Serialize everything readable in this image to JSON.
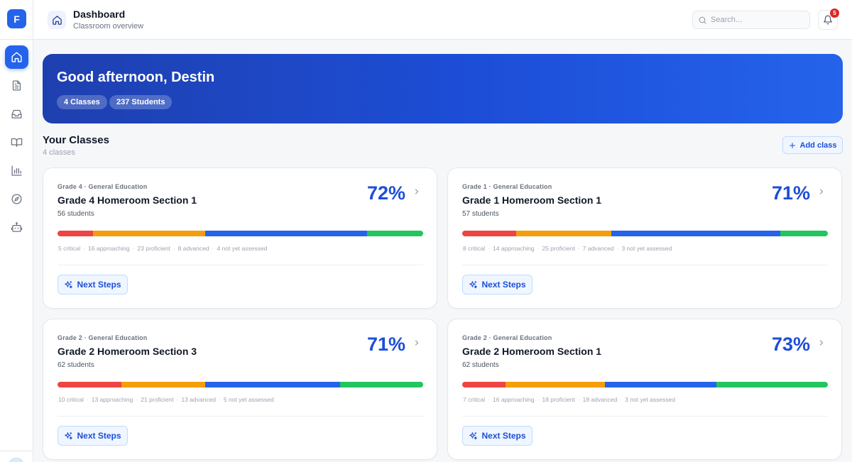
{
  "app": {
    "logo_letter": "F"
  },
  "sidebar": {
    "items": [
      {
        "name": "home",
        "icon": "home-icon",
        "active": true
      },
      {
        "name": "documents",
        "icon": "document-icon",
        "active": false
      },
      {
        "name": "inbox",
        "icon": "inbox-icon",
        "active": false
      },
      {
        "name": "library",
        "icon": "book-icon",
        "active": false
      },
      {
        "name": "reports",
        "icon": "chart-icon",
        "active": false
      },
      {
        "name": "explore",
        "icon": "compass-icon",
        "active": false
      },
      {
        "name": "assistant",
        "icon": "robot-icon",
        "active": false
      }
    ]
  },
  "header": {
    "title": "Dashboard",
    "subtitle": "Classroom overview",
    "search_placeholder": "Search...",
    "notification_count": "5"
  },
  "banner": {
    "greeting": "Good afternoon, Destin",
    "classes_pill": "4 Classes",
    "students_pill": "237 Students"
  },
  "section": {
    "title": "Your Classes",
    "subtitle": "4 classes",
    "add_label": "Add class"
  },
  "colors": {
    "accent": "#2563eb",
    "critical": "#ef4444",
    "approaching": "#f59e0b",
    "proficient": "#2563eb",
    "advanced": "#22c55e"
  },
  "cards": [
    {
      "meta": "Grade 4 · General Education",
      "title": "Grade 4 Homeroom Section 1",
      "students": "56 students",
      "percent": "72%",
      "counts": {
        "critical": 5,
        "approaching": 16,
        "proficient": 23,
        "advanced": 8
      },
      "labels": {
        "critical": "5 critical",
        "approaching": "16 approaching",
        "proficient": "23 proficient",
        "advanced": "8 advanced",
        "not_assessed": "4 not yet assessed"
      },
      "next_steps": "Next Steps"
    },
    {
      "meta": "Grade 1 · General Education",
      "title": "Grade 1 Homeroom Section 1",
      "students": "57 students",
      "percent": "71%",
      "counts": {
        "critical": 8,
        "approaching": 14,
        "proficient": 25,
        "advanced": 7
      },
      "labels": {
        "critical": "8 critical",
        "approaching": "14 approaching",
        "proficient": "25 proficient",
        "advanced": "7 advanced",
        "not_assessed": "3 not yet assessed"
      },
      "next_steps": "Next Steps"
    },
    {
      "meta": "Grade 2 · General Education",
      "title": "Grade 2 Homeroom Section 3",
      "students": "62 students",
      "percent": "71%",
      "counts": {
        "critical": 10,
        "approaching": 13,
        "proficient": 21,
        "advanced": 13
      },
      "labels": {
        "critical": "10 critical",
        "approaching": "13 approaching",
        "proficient": "21 proficient",
        "advanced": "13 advanced",
        "not_assessed": "5 not yet assessed"
      },
      "next_steps": "Next Steps"
    },
    {
      "meta": "Grade 2 · General Education",
      "title": "Grade 2 Homeroom Section 1",
      "students": "62 students",
      "percent": "73%",
      "counts": {
        "critical": 7,
        "approaching": 16,
        "proficient": 18,
        "advanced": 18
      },
      "labels": {
        "critical": "7 critical",
        "approaching": "16 approaching",
        "proficient": "18 proficient",
        "advanced": "18 advanced",
        "not_assessed": "3 not yet assessed"
      },
      "next_steps": "Next Steps"
    }
  ]
}
